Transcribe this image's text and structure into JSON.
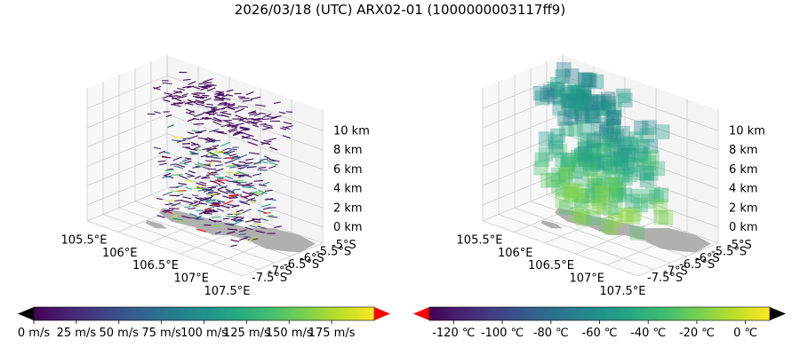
{
  "title": "2026/03/18 (UTC) ARX02-01 (1000000003117ff9)",
  "chart_data": [
    {
      "type": "3d-quiver",
      "name": "wind vectors",
      "x_ticks": [
        "105.5°E",
        "106°E",
        "106.5°E",
        "107°E",
        "107.5°E"
      ],
      "y_ticks": [
        "-5°S",
        "-5.5°S",
        "-6°S",
        "-6.5°S",
        "-7°S",
        "-7.5°S"
      ],
      "z_ticks": [
        "0 km",
        "2 km",
        "4 km",
        "6 km",
        "8 km",
        "10 km"
      ],
      "colorbar": {
        "cmap": "viridis",
        "extend": "both",
        "under_color": "#000000",
        "over_color": "#ff0000",
        "range": [
          0,
          200
        ],
        "ticks": [
          "0 m/s",
          "25 m/s",
          "50 m/s",
          "75 m/s",
          "100 m/s",
          "125 m/s",
          "150 m/s",
          "175 m/s"
        ]
      }
    },
    {
      "type": "3d-voxel",
      "name": "temperature",
      "x_ticks": [
        "105.5°E",
        "106°E",
        "106.5°E",
        "107°E",
        "107.5°E"
      ],
      "y_ticks": [
        "-5°S",
        "-5.5°S",
        "-6°S",
        "-6.5°S",
        "-7°S",
        "-7.5°S"
      ],
      "z_ticks": [
        "0 km",
        "2 km",
        "4 km",
        "6 km",
        "8 km",
        "10 km"
      ],
      "colorbar": {
        "cmap": "viridis",
        "extend": "both",
        "under_color": "#ff0000",
        "over_color": "#000000",
        "range": [
          -130,
          10
        ],
        "ticks": [
          "-120 ℃",
          "-100 ℃",
          "-80 ℃",
          "-60 ℃",
          "-40 ℃",
          "-20 ℃",
          "0 ℃"
        ]
      }
    }
  ],
  "colors": {
    "land": "#b0b0b0",
    "grid": "#cccccc",
    "pane": "#f4f4f4"
  }
}
